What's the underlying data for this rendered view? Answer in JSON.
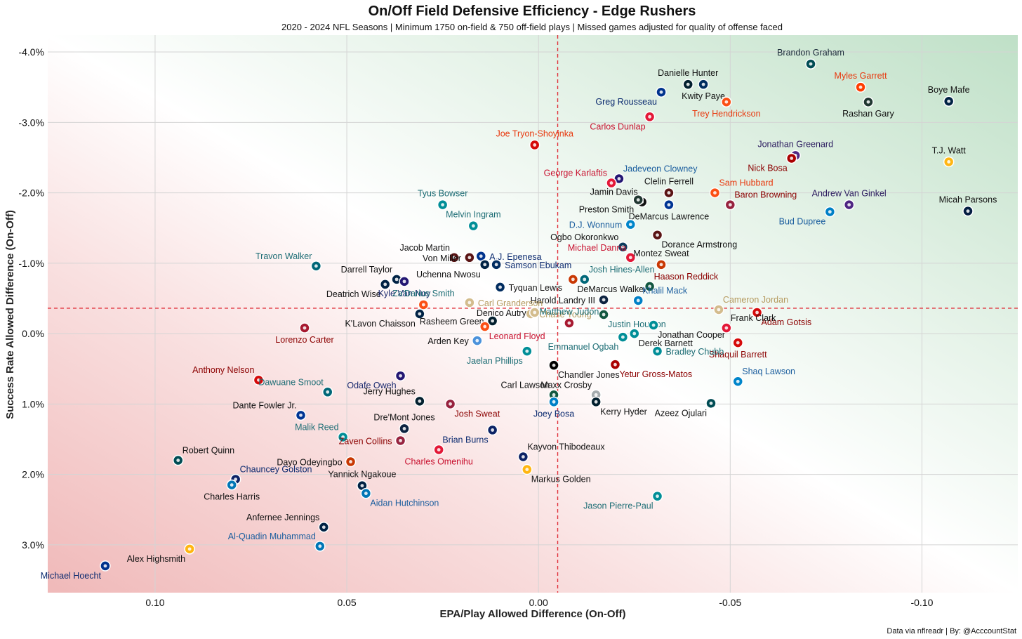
{
  "chart_data": {
    "type": "scatter",
    "title": "On/Off Field Defensive Efficiency - Edge Rushers",
    "subtitle": "2020 - 2024 NFL Seasons | Minimum 1750 on-field & 750 off-field plays | Missed games adjusted for quality of offense faced",
    "xlabel": "EPA/Play Allowed Difference (On-Off)",
    "ylabel": "Success Rate Allowed Difference (On-Off)",
    "caption": "Data via nflreadr | By: @AcccountStat",
    "xlim": [
      0.128,
      -0.125
    ],
    "ylim": [
      3.68,
      -4.24
    ],
    "x_ticks": [
      0.1,
      0.05,
      0.0,
      -0.05,
      -0.1
    ],
    "x_tick_labels": [
      "0.10",
      "0.05",
      "0.00",
      "-0.05",
      "-0.10"
    ],
    "y_ticks": [
      -4,
      -3,
      -2,
      -1,
      0,
      1,
      2,
      3
    ],
    "y_tick_labels": [
      "-4.0%",
      "-3.0%",
      "-2.0%",
      "-1.0%",
      "0.0%",
      "1.0%",
      "2.0%",
      "3.0%"
    ],
    "mean_lines": {
      "x": -0.005,
      "y": -0.36
    },
    "background": "green upper-right (better defense), red lower-left (worse)",
    "colors": {
      "good": "#c8e4cf",
      "bad": "#f2c6c6",
      "meanline": "#e0303a"
    },
    "points": [
      {
        "name": "Brandon Graham",
        "x": -0.071,
        "y": -3.83,
        "color": "#004c54",
        "label_color": "#1b2a3a",
        "label_pos": "above"
      },
      {
        "name": "Danielle Hunter",
        "x": -0.039,
        "y": -3.54,
        "color": "#03202f",
        "label_color": "#111111",
        "label_pos": "above"
      },
      {
        "name": "Myles Garrett",
        "x": -0.084,
        "y": -3.5,
        "color": "#ff3c00",
        "label_color": "#e8380d",
        "label_pos": "above"
      },
      {
        "name": "Kwity Paye",
        "x": -0.043,
        "y": -3.54,
        "color": "#002c5f",
        "label_color": "#111111",
        "label_pos": "below"
      },
      {
        "name": "Greg Rousseau",
        "x": -0.032,
        "y": -3.43,
        "color": "#00338d",
        "label_color": "#0b2a6f",
        "label_pos": "below-left"
      },
      {
        "name": "Boye Mafe",
        "x": -0.107,
        "y": -3.3,
        "color": "#002244",
        "label_color": "#111111",
        "label_pos": "above"
      },
      {
        "name": "Trey Hendrickson",
        "x": -0.049,
        "y": -3.29,
        "color": "#fb4f14",
        "label_color": "#e8380d",
        "label_pos": "below"
      },
      {
        "name": "Rashan Gary",
        "x": -0.086,
        "y": -3.29,
        "color": "#203731",
        "label_color": "#111111",
        "label_pos": "below"
      },
      {
        "name": "Carlos Dunlap",
        "x": -0.029,
        "y": -3.08,
        "color": "#e31837",
        "label_color": "#c8102e",
        "label_pos": "below-left"
      },
      {
        "name": "Joe Tryon-Shoyinka",
        "x": 0.001,
        "y": -2.68,
        "color": "#d50a0a",
        "label_color": "#e8380d",
        "label_pos": "above"
      },
      {
        "name": "Jonathan Greenard",
        "x": -0.067,
        "y": -2.53,
        "color": "#4f2683",
        "label_color": "#2a1a5e",
        "label_pos": "above"
      },
      {
        "name": "Nick Bosa",
        "x": -0.066,
        "y": -2.49,
        "color": "#aa0000",
        "label_color": "#8b0000",
        "label_pos": "below-left"
      },
      {
        "name": "T.J. Watt",
        "x": -0.107,
        "y": -2.44,
        "color": "#ffb612",
        "label_color": "#111111",
        "label_pos": "above"
      },
      {
        "name": "Jadeveon Clowney",
        "x": -0.021,
        "y": -2.2,
        "color": "#241773",
        "label_color": "#1b5e9e",
        "label_pos": "above-right"
      },
      {
        "name": "George Karlaftis",
        "x": -0.019,
        "y": -2.14,
        "color": "#e31837",
        "label_color": "#c8102e",
        "label_pos": "above-left"
      },
      {
        "name": "Clelin Ferrell",
        "x": -0.034,
        "y": -2.0,
        "color": "#5a1414",
        "label_color": "#111111",
        "label_pos": "above"
      },
      {
        "name": "Sam Hubbard",
        "x": -0.046,
        "y": -2.0,
        "color": "#fb4f14",
        "label_color": "#e8380d",
        "label_pos": "above-right"
      },
      {
        "name": "Jamin Davis",
        "x": -0.027,
        "y": -1.87,
        "color": "#111111",
        "label_color": "#111111",
        "label_pos": "above-left"
      },
      {
        "name": "Tyus Bowser",
        "x": 0.025,
        "y": -1.83,
        "color": "#008e97",
        "label_color": "#1d6d75",
        "label_pos": "above"
      },
      {
        "name": "Baron Browning",
        "x": -0.05,
        "y": -1.83,
        "color": "#97233f",
        "label_color": "#8b0000",
        "label_pos": "above-right"
      },
      {
        "name": "Andrew Van Ginkel",
        "x": -0.081,
        "y": -1.83,
        "color": "#4f2683",
        "label_color": "#2a1a5e",
        "label_pos": "above"
      },
      {
        "name": "Micah Parsons",
        "x": -0.112,
        "y": -1.74,
        "color": "#041e42",
        "label_color": "#111111",
        "label_pos": "above"
      },
      {
        "name": "Preston Smith",
        "x": -0.026,
        "y": -1.9,
        "color": "#203731",
        "label_color": "#111111",
        "label_pos": "below-left"
      },
      {
        "name": "DeMarcus Lawrence",
        "x": -0.034,
        "y": -1.83,
        "color": "#003594",
        "label_color": "#111111",
        "label_pos": "below"
      },
      {
        "name": "Bud Dupree",
        "x": -0.076,
        "y": -1.73,
        "color": "#0080c6",
        "label_color": "#1b5e9e",
        "label_pos": "below-left"
      },
      {
        "name": "Melvin Ingram",
        "x": 0.017,
        "y": -1.53,
        "color": "#008e97",
        "label_color": "#1d6d75",
        "label_pos": "above"
      },
      {
        "name": "D.J. Wonnum",
        "x": -0.024,
        "y": -1.55,
        "color": "#0085ca",
        "label_color": "#1b5e9e",
        "label_pos": "left"
      },
      {
        "name": "Dorance Armstrong",
        "x": -0.031,
        "y": -1.4,
        "color": "#5a1414",
        "label_color": "#111111",
        "label_pos": "below-right"
      },
      {
        "name": "Ogbo Okoronkwo",
        "x": -0.022,
        "y": -1.23,
        "color": "#0b3c5d",
        "label_color": "#111111",
        "label_pos": "above-left"
      },
      {
        "name": "Jacob Martin",
        "x": 0.022,
        "y": -1.08,
        "color": "#5a1414",
        "label_color": "#111111",
        "label_pos": "above-left"
      },
      {
        "name": "Von Miller",
        "x": 0.018,
        "y": -1.08,
        "color": "#5a1414",
        "label_color": "#111111",
        "label_pos": "left"
      },
      {
        "name": "A.J. Epenesa",
        "x": 0.015,
        "y": -1.1,
        "color": "#00338d",
        "label_color": "#0b2a6f",
        "label_pos": "right"
      },
      {
        "name": "Michael Danna",
        "x": -0.024,
        "y": -1.08,
        "color": "#e31837",
        "label_color": "#c8102e",
        "label_pos": "above-left"
      },
      {
        "name": "Montez Sweat",
        "x": -0.032,
        "y": -0.98,
        "color": "#c83803",
        "label_color": "#111111",
        "label_pos": "above"
      },
      {
        "name": "Travon Walker",
        "x": 0.058,
        "y": -0.96,
        "color": "#006778",
        "label_color": "#1d6d75",
        "label_pos": "above-left"
      },
      {
        "name": "Uchenna Nwosu",
        "x": 0.014,
        "y": -0.98,
        "color": "#002244",
        "label_color": "#111111",
        "label_pos": "below-left"
      },
      {
        "name": "Samson Ebukam",
        "x": 0.011,
        "y": -0.98,
        "color": "#002c5f",
        "label_color": "#0b2a6f",
        "label_pos": "right"
      },
      {
        "name": "Josh Hines-Allen",
        "x": -0.012,
        "y": -0.77,
        "color": "#006778",
        "label_color": "#1d6d75",
        "label_pos": "above-right"
      },
      {
        "name": "Darrell Taylor",
        "x": 0.037,
        "y": -0.77,
        "color": "#002244",
        "label_color": "#111111",
        "label_pos": "above-left"
      },
      {
        "name": "Deatrich Wise",
        "x": 0.04,
        "y": -0.7,
        "color": "#002244",
        "label_color": "#111111",
        "label_pos": "below-left"
      },
      {
        "name": "Kyle Van Noy",
        "x": 0.035,
        "y": -0.74,
        "color": "#241773",
        "label_color": "#1b2a6f",
        "label_pos": "below"
      },
      {
        "name": "Tyquan Lewis",
        "x": 0.01,
        "y": -0.66,
        "color": "#002c5f",
        "label_color": "#111111",
        "label_pos": "right"
      },
      {
        "name": "DeMarcus Walker",
        "x": -0.009,
        "y": -0.77,
        "color": "#c83803",
        "label_color": "#111111",
        "label_pos": "below-right"
      },
      {
        "name": "Haason Reddick",
        "x": -0.029,
        "y": -0.67,
        "color": "#125740",
        "label_color": "#8b0000",
        "label_pos": "above-right"
      },
      {
        "name": "Harold Landry III",
        "x": -0.017,
        "y": -0.48,
        "color": "#0c2340",
        "label_color": "#111111",
        "label_pos": "left"
      },
      {
        "name": "Khalil Mack",
        "x": -0.026,
        "y": -0.47,
        "color": "#0080c6",
        "label_color": "#1b5e9e",
        "label_pos": "above-right"
      },
      {
        "name": "Carl Granderson",
        "x": 0.018,
        "y": -0.44,
        "color": "#d3bc8d",
        "label_color": "#b59a5e",
        "label_pos": "right"
      },
      {
        "name": "Za'Darius Smith",
        "x": 0.03,
        "y": -0.41,
        "color": "#fb4f14",
        "label_color": "#1d6d75",
        "label_pos": "above"
      },
      {
        "name": "Cameron Jordan",
        "x": -0.047,
        "y": -0.34,
        "color": "#d3bc8d",
        "label_color": "#b59a5e",
        "label_pos": "above-right"
      },
      {
        "name": "Chase Young",
        "x": 0.002,
        "y": -0.28,
        "color": "#d3bc8d",
        "label_color": "#b59a5e",
        "label_pos": "right"
      },
      {
        "name": "K'Lavon Chaisson",
        "x": 0.031,
        "y": -0.28,
        "color": "#002244",
        "label_color": "#111111",
        "label_pos": "below-left"
      },
      {
        "name": "Justin Houston",
        "x": -0.017,
        "y": -0.27,
        "color": "#125740",
        "label_color": "#1d6d75",
        "label_pos": "below-right"
      },
      {
        "name": "Adam Gotsis",
        "x": -0.057,
        "y": -0.3,
        "color": "#d50a0a",
        "label_color": "#8b0000",
        "label_pos": "below-right"
      },
      {
        "name": "Denico Autry",
        "x": 0.001,
        "y": -0.3,
        "color": "#d3bc8d",
        "label_color": "#111111",
        "label_pos": "left"
      },
      {
        "name": "Rasheem Green",
        "x": 0.012,
        "y": -0.18,
        "color": "#03202f",
        "label_color": "#111111",
        "label_pos": "left"
      },
      {
        "name": "Matthew Judon",
        "x": -0.008,
        "y": -0.15,
        "color": "#a71930",
        "label_color": "#1d6d75",
        "label_pos": "above"
      },
      {
        "name": "Jonathan Cooper",
        "x": -0.03,
        "y": -0.12,
        "color": "#008e97",
        "label_color": "#111111",
        "label_pos": "below-right"
      },
      {
        "name": "Frank Clark",
        "x": -0.049,
        "y": -0.08,
        "color": "#e31837",
        "label_color": "#111111",
        "label_pos": "above-right"
      },
      {
        "name": "Lorenzo Carter",
        "x": 0.061,
        "y": -0.08,
        "color": "#a71930",
        "label_color": "#8b0000",
        "label_pos": "below"
      },
      {
        "name": "Leonard Floyd",
        "x": 0.014,
        "y": -0.1,
        "color": "#fb4f14",
        "label_color": "#c8102e",
        "label_pos": "below-right"
      },
      {
        "name": "Arden Key",
        "x": 0.016,
        "y": 0.1,
        "color": "#4b92db",
        "label_color": "#111111",
        "label_pos": "left"
      },
      {
        "name": "Emmanuel Ogbah",
        "x": -0.022,
        "y": 0.05,
        "color": "#008e97",
        "label_color": "#1d6d75",
        "label_pos": "below-left"
      },
      {
        "name": "Derek Barnett",
        "x": -0.025,
        "y": 0.0,
        "color": "#008e97",
        "label_color": "#111111",
        "label_pos": "below-right"
      },
      {
        "name": "Shaquil Barrett",
        "x": -0.052,
        "y": 0.13,
        "color": "#d50a0a",
        "label_color": "#8b0000",
        "label_pos": "below"
      },
      {
        "name": "Jaelan Phillips",
        "x": 0.003,
        "y": 0.25,
        "color": "#008e97",
        "label_color": "#1d6d75",
        "label_pos": "below-left"
      },
      {
        "name": "Bradley Chubb",
        "x": -0.031,
        "y": 0.25,
        "color": "#008e97",
        "label_color": "#1d6d75",
        "label_pos": "right"
      },
      {
        "name": "Chandler Jones",
        "x": -0.004,
        "y": 0.45,
        "color": "#000000",
        "label_color": "#111111",
        "label_pos": "below-right"
      },
      {
        "name": "Yetur Gross-Matos",
        "x": -0.02,
        "y": 0.44,
        "color": "#aa0000",
        "label_color": "#8b0000",
        "label_pos": "below-right"
      },
      {
        "name": "Anthony Nelson",
        "x": 0.073,
        "y": 0.66,
        "color": "#d50a0a",
        "label_color": "#8b0000",
        "label_pos": "above-left"
      },
      {
        "name": "Odafe Oweh",
        "x": 0.036,
        "y": 0.6,
        "color": "#241773",
        "label_color": "#1b2a6f",
        "label_pos": "below-left"
      },
      {
        "name": "Dawuane Smoot",
        "x": 0.055,
        "y": 0.83,
        "color": "#006778",
        "label_color": "#1d6d75",
        "label_pos": "above-left"
      },
      {
        "name": "Maxx Crosby",
        "x": -0.015,
        "y": 0.87,
        "color": "#a5acaf",
        "label_color": "#111111",
        "label_pos": "above-left"
      },
      {
        "name": "Shaq Lawson",
        "x": -0.052,
        "y": 0.68,
        "color": "#0085ca",
        "label_color": "#1b5e9e",
        "label_pos": "above-right"
      },
      {
        "name": "Carl Lawson",
        "x": -0.004,
        "y": 0.87,
        "color": "#125740",
        "label_color": "#111111",
        "label_pos": "above-left"
      },
      {
        "name": "Jerry Hughes",
        "x": 0.031,
        "y": 0.96,
        "color": "#03202f",
        "label_color": "#111111",
        "label_pos": "above-left"
      },
      {
        "name": "Josh Sweat",
        "x": 0.023,
        "y": 1.0,
        "color": "#97233f",
        "label_color": "#8b0000",
        "label_pos": "below-right"
      },
      {
        "name": "Joey Bosa",
        "x": -0.004,
        "y": 0.97,
        "color": "#0080c6",
        "label_color": "#0b2a6f",
        "label_pos": "below"
      },
      {
        "name": "Kerry Hyder",
        "x": -0.015,
        "y": 0.97,
        "color": "#03202f",
        "label_color": "#111111",
        "label_pos": "below-right"
      },
      {
        "name": "Azeez Ojulari",
        "x": -0.045,
        "y": 0.99,
        "color": "#004c54",
        "label_color": "#111111",
        "label_pos": "below-left"
      },
      {
        "name": "Dante Fowler Jr.",
        "x": 0.062,
        "y": 1.16,
        "color": "#003594",
        "label_color": "#111111",
        "label_pos": "above-left"
      },
      {
        "name": "Dre'Mont Jones",
        "x": 0.035,
        "y": 1.35,
        "color": "#0c2340",
        "label_color": "#111111",
        "label_pos": "above"
      },
      {
        "name": "Malik Reed",
        "x": 0.051,
        "y": 1.47,
        "color": "#008e97",
        "label_color": "#1d6d75",
        "label_pos": "above-left"
      },
      {
        "name": "Brian Burns",
        "x": 0.012,
        "y": 1.37,
        "color": "#0b2265",
        "label_color": "#0b2a6f",
        "label_pos": "below-left"
      },
      {
        "name": "Zaven Collins",
        "x": 0.036,
        "y": 1.52,
        "color": "#97233f",
        "label_color": "#8b0000",
        "label_pos": "left"
      },
      {
        "name": "Kayvon Thibodeaux",
        "x": 0.004,
        "y": 1.75,
        "color": "#0b2265",
        "label_color": "#111111",
        "label_pos": "above-right"
      },
      {
        "name": "Charles Omenihu",
        "x": 0.026,
        "y": 1.65,
        "color": "#e31837",
        "label_color": "#c8102e",
        "label_pos": "below"
      },
      {
        "name": "Robert Quinn",
        "x": 0.094,
        "y": 1.8,
        "color": "#004c54",
        "label_color": "#111111",
        "label_pos": "above-right"
      },
      {
        "name": "Dayo Odeyingbo",
        "x": 0.049,
        "y": 1.82,
        "color": "#c83803",
        "label_color": "#111111",
        "label_pos": "left"
      },
      {
        "name": "Chauncey Golston",
        "x": 0.079,
        "y": 2.07,
        "color": "#0b2265",
        "label_color": "#0b2a6f",
        "label_pos": "above-right"
      },
      {
        "name": "Markus Golden",
        "x": 0.003,
        "y": 1.93,
        "color": "#ffb612",
        "label_color": "#111111",
        "label_pos": "below-right"
      },
      {
        "name": "Yannick Ngakoue",
        "x": 0.046,
        "y": 2.16,
        "color": "#002244",
        "label_color": "#111111",
        "label_pos": "above"
      },
      {
        "name": "Charles Harris",
        "x": 0.08,
        "y": 2.15,
        "color": "#0076b6",
        "label_color": "#111111",
        "label_pos": "below"
      },
      {
        "name": "Aidan Hutchinson",
        "x": 0.045,
        "y": 2.27,
        "color": "#0076b6",
        "label_color": "#1b5e9e",
        "label_pos": "below-right"
      },
      {
        "name": "Jason Pierre-Paul",
        "x": -0.031,
        "y": 2.31,
        "color": "#008e97",
        "label_color": "#1d6d75",
        "label_pos": "below-left"
      },
      {
        "name": "Anfernee Jennings",
        "x": 0.056,
        "y": 2.75,
        "color": "#002244",
        "label_color": "#111111",
        "label_pos": "above-left"
      },
      {
        "name": "Al-Quadin Muhammad",
        "x": 0.057,
        "y": 3.02,
        "color": "#0076b6",
        "label_color": "#1b5e9e",
        "label_pos": "above-left"
      },
      {
        "name": "Alex Highsmith",
        "x": 0.091,
        "y": 3.06,
        "color": "#ffb612",
        "label_color": "#111111",
        "label_pos": "below-left"
      },
      {
        "name": "Michael Hoecht",
        "x": 0.113,
        "y": 3.3,
        "color": "#00338d",
        "label_color": "#0b2a6f",
        "label_pos": "below-left"
      }
    ]
  }
}
